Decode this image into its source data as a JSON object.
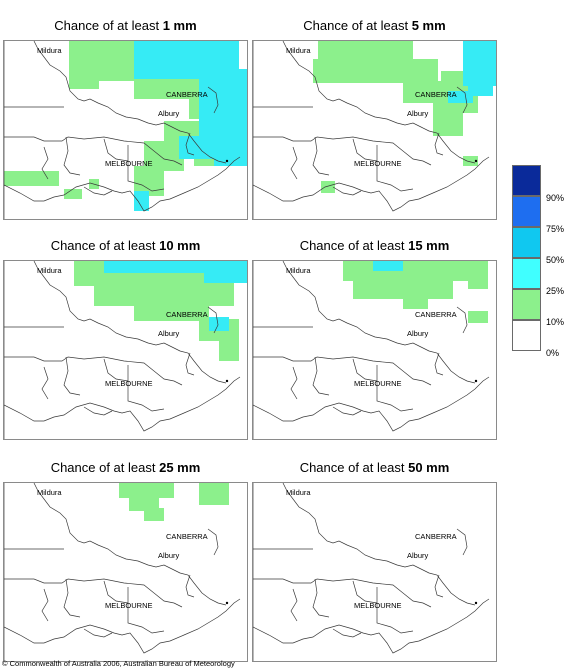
{
  "panels": [
    {
      "title_prefix": "Chance of at least",
      "threshold": "1 mm",
      "green": [
        [
          65,
          0,
          130,
          28
        ],
        [
          65,
          0,
          95,
          48
        ],
        [
          95,
          22,
          150,
          40
        ],
        [
          210,
          0,
          230,
          30
        ],
        [
          130,
          38,
          195,
          58
        ],
        [
          185,
          50,
          205,
          78
        ],
        [
          160,
          80,
          200,
          105
        ],
        [
          140,
          100,
          180,
          130
        ],
        [
          130,
          125,
          160,
          155
        ],
        [
          0,
          130,
          55,
          145
        ],
        [
          60,
          148,
          78,
          158
        ],
        [
          190,
          112,
          235,
          125
        ],
        [
          85,
          138,
          95,
          148
        ]
      ],
      "cyan": [
        [
          130,
          0,
          235,
          38
        ],
        [
          195,
          28,
          245,
          110
        ],
        [
          210,
          105,
          245,
          125
        ],
        [
          175,
          95,
          215,
          118
        ],
        [
          130,
          150,
          145,
          170
        ]
      ]
    },
    {
      "title_prefix": "Chance of at least",
      "threshold": "5 mm",
      "green": [
        [
          65,
          0,
          160,
          22
        ],
        [
          60,
          18,
          185,
          42
        ],
        [
          150,
          40,
          205,
          62
        ],
        [
          188,
          30,
          225,
          72
        ],
        [
          180,
          60,
          210,
          95
        ],
        [
          68,
          140,
          82,
          152
        ],
        [
          210,
          115,
          225,
          125
        ]
      ],
      "cyan": [
        [
          210,
          0,
          245,
          45
        ],
        [
          215,
          40,
          240,
          55
        ],
        [
          195,
          50,
          220,
          62
        ]
      ]
    },
    {
      "title_prefix": "Chance of at least",
      "threshold": "10 mm",
      "green": [
        [
          70,
          0,
          215,
          25
        ],
        [
          90,
          22,
          230,
          45
        ],
        [
          130,
          42,
          205,
          60
        ],
        [
          195,
          58,
          235,
          80
        ],
        [
          215,
          78,
          235,
          100
        ]
      ],
      "cyan": [
        [
          100,
          0,
          240,
          12
        ],
        [
          200,
          0,
          245,
          22
        ],
        [
          205,
          56,
          225,
          70
        ]
      ]
    },
    {
      "title_prefix": "Chance of at least",
      "threshold": "15 mm",
      "green": [
        [
          90,
          0,
          225,
          20
        ],
        [
          100,
          18,
          200,
          38
        ],
        [
          150,
          36,
          175,
          48
        ],
        [
          215,
          0,
          235,
          28
        ],
        [
          215,
          50,
          235,
          62
        ]
      ],
      "cyan": [
        [
          120,
          0,
          150,
          10
        ]
      ]
    },
    {
      "title_prefix": "Chance of at least",
      "threshold": "25 mm",
      "green": [
        [
          115,
          0,
          170,
          15
        ],
        [
          125,
          12,
          155,
          28
        ],
        [
          195,
          0,
          225,
          22
        ],
        [
          140,
          25,
          160,
          38
        ]
      ],
      "cyan": []
    },
    {
      "title_prefix": "Chance of at least",
      "threshold": "50 mm",
      "green": [],
      "cyan": []
    }
  ],
  "places": {
    "mildura": "Mildura",
    "canberra": "CANBERRA",
    "albury": "Albury",
    "melbourne": "MELBOURNE"
  },
  "legend": {
    "labels": [
      "90%",
      "75%",
      "50%",
      "25%",
      "10%",
      "0%"
    ],
    "colors": [
      "#0a2a9a",
      "#1e6ef0",
      "#10c8f0",
      "#40ffff",
      "#8cf08c",
      "#ffffff"
    ]
  },
  "colors": {
    "green": "#8cf08c",
    "cyan": "#36ebf5"
  },
  "copyright": "© Commonwealth of Australia 2006, Australian Bureau of Meteorology"
}
